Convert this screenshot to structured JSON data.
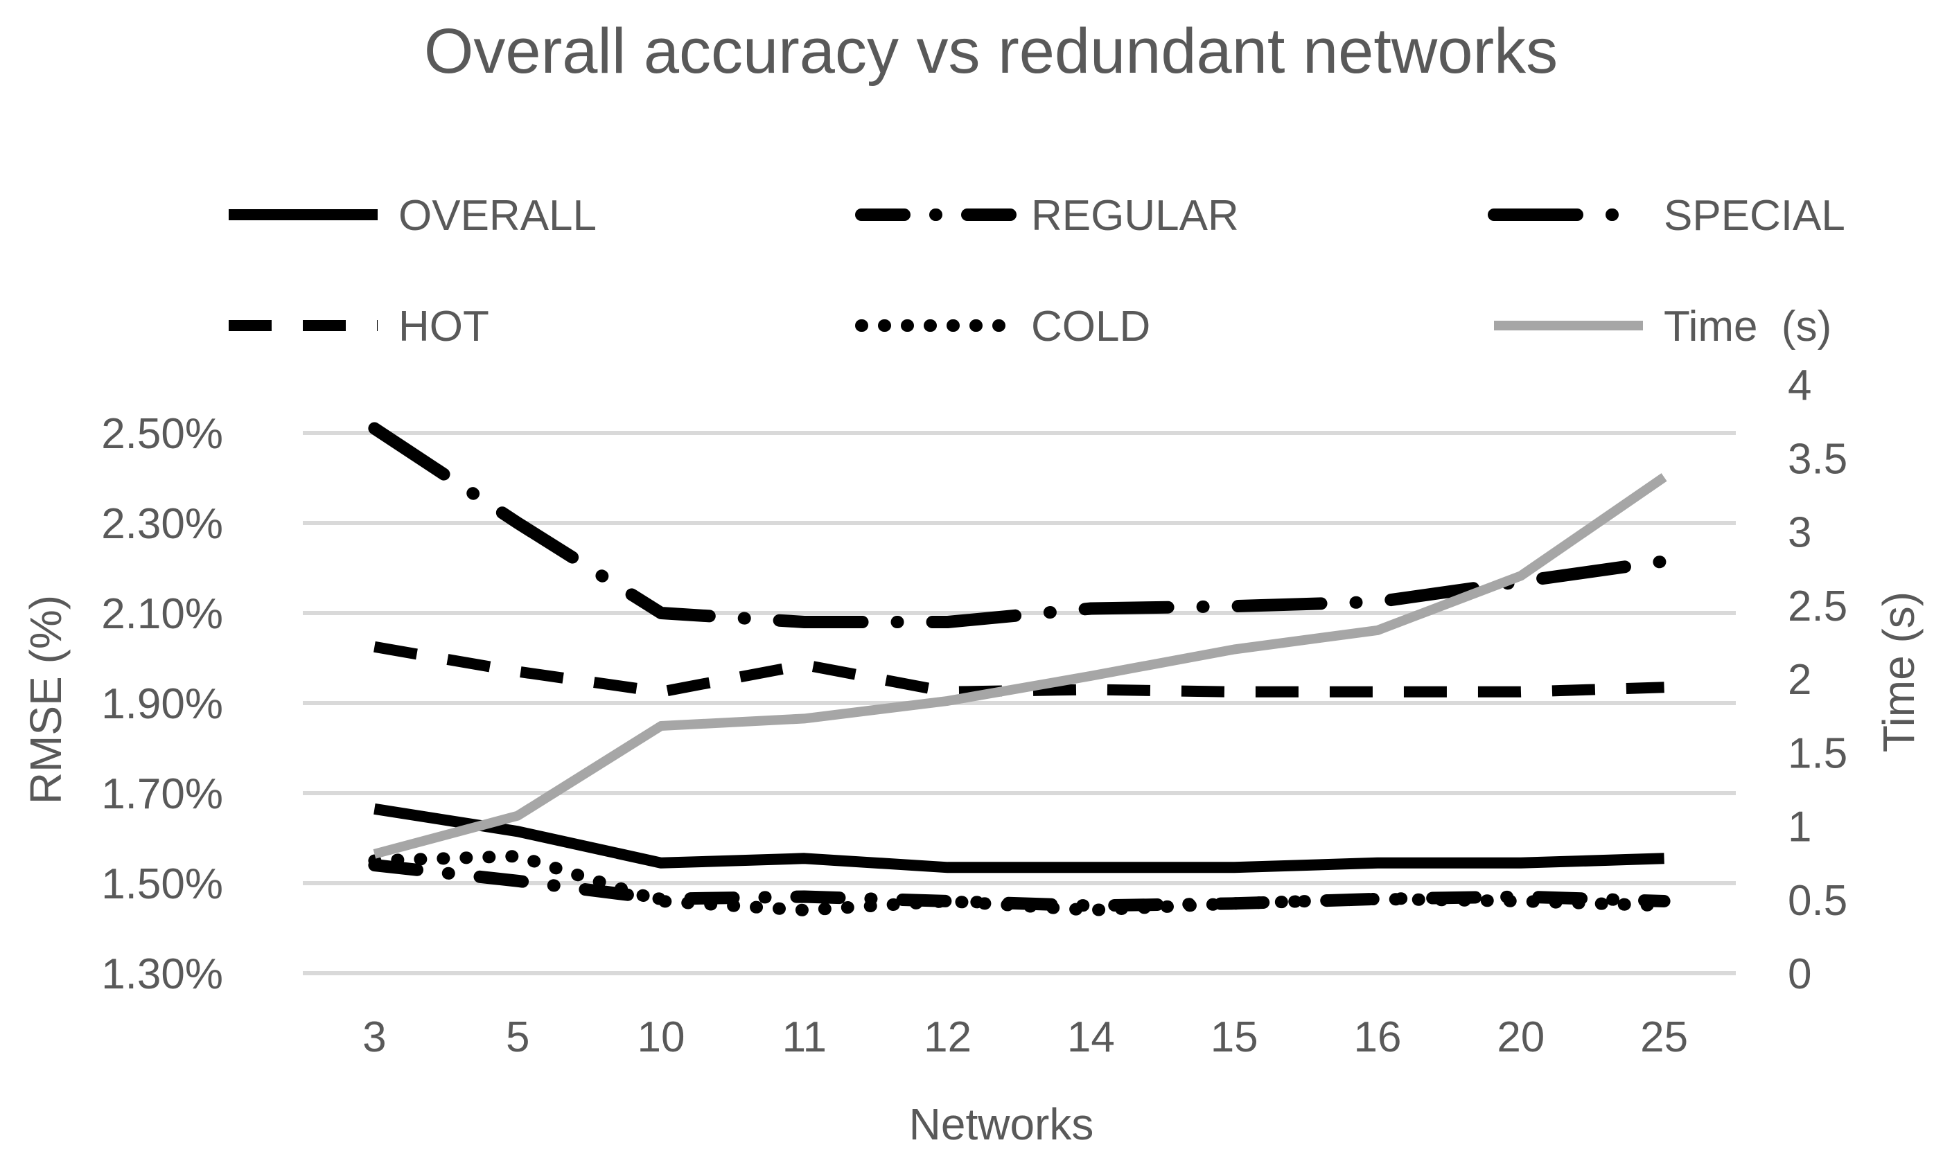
{
  "chart_data": {
    "type": "line",
    "title": "Overall accuracy vs redundant networks",
    "xlabel": "Networks",
    "ylabel": "RMSE (%)",
    "y2label": "Time (s)",
    "categories": [
      "3",
      "5",
      "10",
      "11",
      "12",
      "14",
      "15",
      "16",
      "20",
      "25"
    ],
    "ylim": [
      1.3,
      2.5
    ],
    "y_ticks": [
      "2.50%",
      "2.30%",
      "2.10%",
      "1.90%",
      "1.70%",
      "1.50%",
      "1.30%"
    ],
    "y2lim": [
      0,
      4
    ],
    "y2_ticks": [
      "4",
      "3.5",
      "3",
      "2.5",
      "2",
      "1.5",
      "1",
      "0.5",
      "0"
    ],
    "grid": true,
    "legend_position": "top",
    "series": [
      {
        "name": "OVERALL",
        "axis": "left",
        "style": "solid",
        "color": "#000000",
        "values": [
          1.665,
          1.615,
          1.545,
          1.555,
          1.535,
          1.535,
          1.535,
          1.545,
          1.545,
          1.555
        ]
      },
      {
        "name": "REGULAR",
        "axis": "left",
        "style": "dashdot",
        "color": "#000000",
        "values": [
          1.54,
          1.505,
          1.465,
          1.47,
          1.46,
          1.45,
          1.455,
          1.465,
          1.47,
          1.46
        ]
      },
      {
        "name": "SPECIAL",
        "axis": "left",
        "style": "longdashdot",
        "color": "#000000",
        "values": [
          2.51,
          2.3,
          2.1,
          2.08,
          2.08,
          2.11,
          2.115,
          2.125,
          2.17,
          2.215
        ]
      },
      {
        "name": "HOT",
        "axis": "left",
        "style": "dash",
        "color": "#000000",
        "values": [
          2.025,
          1.97,
          1.925,
          1.985,
          1.925,
          1.93,
          1.925,
          1.925,
          1.925,
          1.935
        ]
      },
      {
        "name": "COLD",
        "axis": "left",
        "style": "dot",
        "color": "#000000",
        "values": [
          1.55,
          1.56,
          1.46,
          1.44,
          1.46,
          1.44,
          1.455,
          1.465,
          1.46,
          1.45
        ]
      },
      {
        "name": "Time  (s)",
        "axis": "right",
        "style": "solid",
        "color": "#a6a6a6",
        "values": [
          0.81,
          1.07,
          1.68,
          1.73,
          1.85,
          2.02,
          2.2,
          2.33,
          2.7,
          3.37
        ]
      }
    ]
  }
}
